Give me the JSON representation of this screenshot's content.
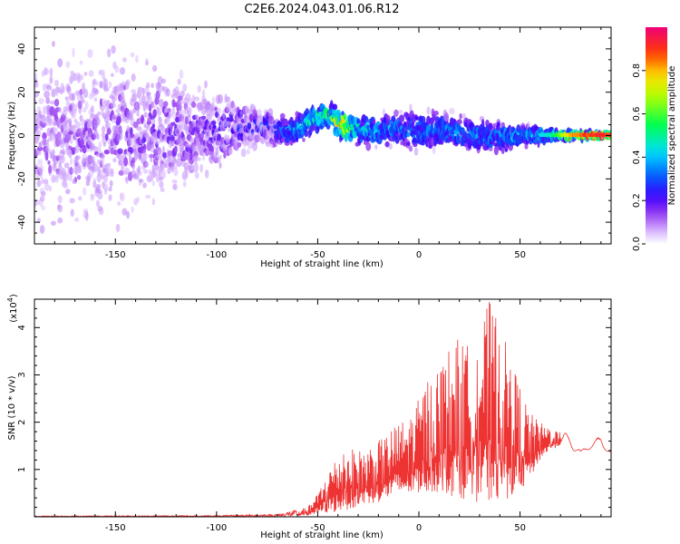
{
  "title": "C2E6.2024.043.01.06.R12",
  "chart_data": [
    {
      "type": "heatmap",
      "xlabel": "Height of straight line (km)",
      "ylabel": "Frequency (Hz)",
      "xlim": [
        -190,
        95
      ],
      "ylim": [
        -50,
        50
      ],
      "xticks": [
        -150,
        -100,
        -50,
        0,
        50
      ],
      "yticks": [
        -40,
        -20,
        0,
        20,
        40
      ],
      "colorbar": {
        "label": "Normalized spectral amplitude",
        "range": [
          0,
          1
        ],
        "ticks": [
          0.0,
          0.2,
          0.4,
          0.6,
          0.8
        ],
        "colormap": "rainbow"
      },
      "band_center_hz": [
        [
          -190,
          0
        ],
        [
          -150,
          1
        ],
        [
          -120,
          1
        ],
        [
          -100,
          2
        ],
        [
          -90,
          3
        ],
        [
          -80,
          5
        ],
        [
          -70,
          2
        ],
        [
          -60,
          3
        ],
        [
          -52,
          8
        ],
        [
          -45,
          9
        ],
        [
          -38,
          5
        ],
        [
          -30,
          3
        ],
        [
          -20,
          2
        ],
        [
          -10,
          3
        ],
        [
          0,
          2
        ],
        [
          10,
          3
        ],
        [
          20,
          1
        ],
        [
          30,
          0
        ],
        [
          40,
          -1
        ],
        [
          50,
          0
        ],
        [
          60,
          0
        ],
        [
          70,
          0
        ],
        [
          80,
          0
        ],
        [
          95,
          0
        ]
      ],
      "band_halfwidth_hz": [
        [
          -190,
          45
        ],
        [
          -150,
          40
        ],
        [
          -120,
          30
        ],
        [
          -100,
          18
        ],
        [
          -80,
          10
        ],
        [
          -70,
          8
        ],
        [
          -50,
          7
        ],
        [
          -30,
          8
        ],
        [
          -10,
          9
        ],
        [
          0,
          10
        ],
        [
          20,
          9
        ],
        [
          40,
          8
        ],
        [
          55,
          5
        ],
        [
          65,
          3
        ],
        [
          75,
          2
        ],
        [
          95,
          1
        ]
      ],
      "peak_amplitude": [
        [
          -190,
          0.12
        ],
        [
          -150,
          0.15
        ],
        [
          -110,
          0.18
        ],
        [
          -90,
          0.25
        ],
        [
          -70,
          0.3
        ],
        [
          -52,
          0.5
        ],
        [
          -45,
          0.55
        ],
        [
          -38,
          0.8
        ],
        [
          -30,
          0.45
        ],
        [
          -10,
          0.35
        ],
        [
          0,
          0.35
        ],
        [
          20,
          0.35
        ],
        [
          40,
          0.38
        ],
        [
          55,
          0.4
        ],
        [
          65,
          0.5
        ],
        [
          75,
          0.85
        ],
        [
          85,
          0.95
        ],
        [
          95,
          0.95
        ]
      ]
    },
    {
      "type": "line",
      "xlabel": "Height of straight line (km)",
      "ylabel": "SNR (10 * v/v)",
      "scale_label": "(x10",
      "scale_exp": "4",
      "scale_close": ")",
      "xlim": [
        -190,
        95
      ],
      "ylim": [
        0,
        4.6
      ],
      "xticks": [
        -150,
        -100,
        -50,
        0,
        50
      ],
      "yticks": [
        1,
        2,
        3,
        4
      ],
      "color": "#ee3333",
      "series": [
        {
          "envelope_upper": [
            [
              -190,
              0.02
            ],
            [
              -100,
              0.03
            ],
            [
              -70,
              0.06
            ],
            [
              -55,
              0.2
            ],
            [
              -50,
              0.5
            ],
            [
              -45,
              1.0
            ],
            [
              -37,
              1.5
            ],
            [
              -30,
              1.4
            ],
            [
              -20,
              1.6
            ],
            [
              -10,
              2.0
            ],
            [
              -5,
              2.1
            ],
            [
              0,
              2.5
            ],
            [
              5,
              3.0
            ],
            [
              10,
              3.2
            ],
            [
              15,
              3.6
            ],
            [
              20,
              3.8
            ],
            [
              25,
              3.6
            ],
            [
              30,
              4.0
            ],
            [
              35,
              4.6
            ],
            [
              40,
              4.1
            ],
            [
              45,
              3.4
            ],
            [
              50,
              2.8
            ],
            [
              55,
              2.2
            ],
            [
              60,
              2.0
            ],
            [
              65,
              1.9
            ],
            [
              70,
              1.8
            ],
            [
              75,
              1.75
            ],
            [
              80,
              1.4
            ],
            [
              85,
              1.6
            ],
            [
              90,
              1.7
            ],
            [
              95,
              1.4
            ]
          ],
          "envelope_lower": [
            [
              -190,
              0.0
            ],
            [
              -60,
              0.0
            ],
            [
              -50,
              0.05
            ],
            [
              -40,
              0.1
            ],
            [
              -30,
              0.2
            ],
            [
              -20,
              0.3
            ],
            [
              -10,
              0.4
            ],
            [
              0,
              0.5
            ],
            [
              10,
              0.5
            ],
            [
              20,
              0.4
            ],
            [
              30,
              0.3
            ],
            [
              40,
              0.3
            ],
            [
              50,
              0.5
            ],
            [
              55,
              0.8
            ],
            [
              60,
              1.2
            ],
            [
              65,
              1.4
            ],
            [
              70,
              1.5
            ],
            [
              75,
              1.45
            ],
            [
              80,
              1.3
            ],
            [
              85,
              1.45
            ],
            [
              90,
              1.5
            ],
            [
              95,
              1.3
            ]
          ]
        }
      ]
    }
  ]
}
